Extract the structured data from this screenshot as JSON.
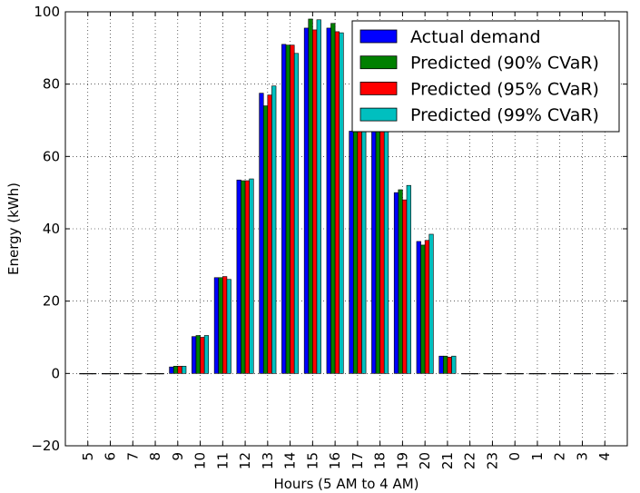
{
  "chart_data": {
    "type": "bar",
    "title": "",
    "xlabel": "Hours (5 AM to 4 AM)",
    "ylabel": "Energy (kWh)",
    "ylim": [
      -20,
      100
    ],
    "yticks": [
      -20,
      0,
      20,
      40,
      60,
      80,
      100
    ],
    "grid": true,
    "legend_position": "top-right",
    "categories": [
      "5",
      "6",
      "7",
      "8",
      "9",
      "10",
      "11",
      "12",
      "13",
      "14",
      "15",
      "16",
      "17",
      "18",
      "19",
      "20",
      "21",
      "22",
      "23",
      "0",
      "1",
      "2",
      "3",
      "4"
    ],
    "series": [
      {
        "name": "Actual demand",
        "color": "#0000ff",
        "values": [
          0,
          0,
          0,
          0,
          1.8,
          10.2,
          26.5,
          53.5,
          77.5,
          91,
          95.5,
          95.5,
          67,
          67,
          50,
          36.5,
          4.8,
          0,
          0,
          0,
          0,
          0,
          0,
          0
        ]
      },
      {
        "name": "Predicted (90% CVaR)",
        "color": "#008000",
        "values": [
          0,
          0,
          0,
          0,
          2,
          10.5,
          26.5,
          53.3,
          74,
          90.8,
          98,
          96.8,
          67,
          67,
          50.8,
          35.5,
          4.8,
          0,
          0,
          0,
          0,
          0,
          0,
          0
        ]
      },
      {
        "name": "Predicted (95% CVaR)",
        "color": "#ff0000",
        "values": [
          0,
          0,
          0,
          0,
          2,
          10,
          26.8,
          53.3,
          77,
          90.8,
          95,
          94.5,
          67,
          67,
          48,
          36.8,
          4.5,
          0,
          0,
          0,
          0,
          0,
          0,
          0
        ]
      },
      {
        "name": "Predicted (99% CVaR)",
        "color": "#00bfbf",
        "values": [
          0,
          0,
          0,
          0,
          2,
          10.5,
          26,
          53.8,
          79.5,
          88.5,
          97.8,
          94.2,
          67,
          67,
          52,
          38.5,
          4.8,
          0,
          0,
          0,
          0,
          0,
          0,
          0
        ]
      }
    ]
  }
}
